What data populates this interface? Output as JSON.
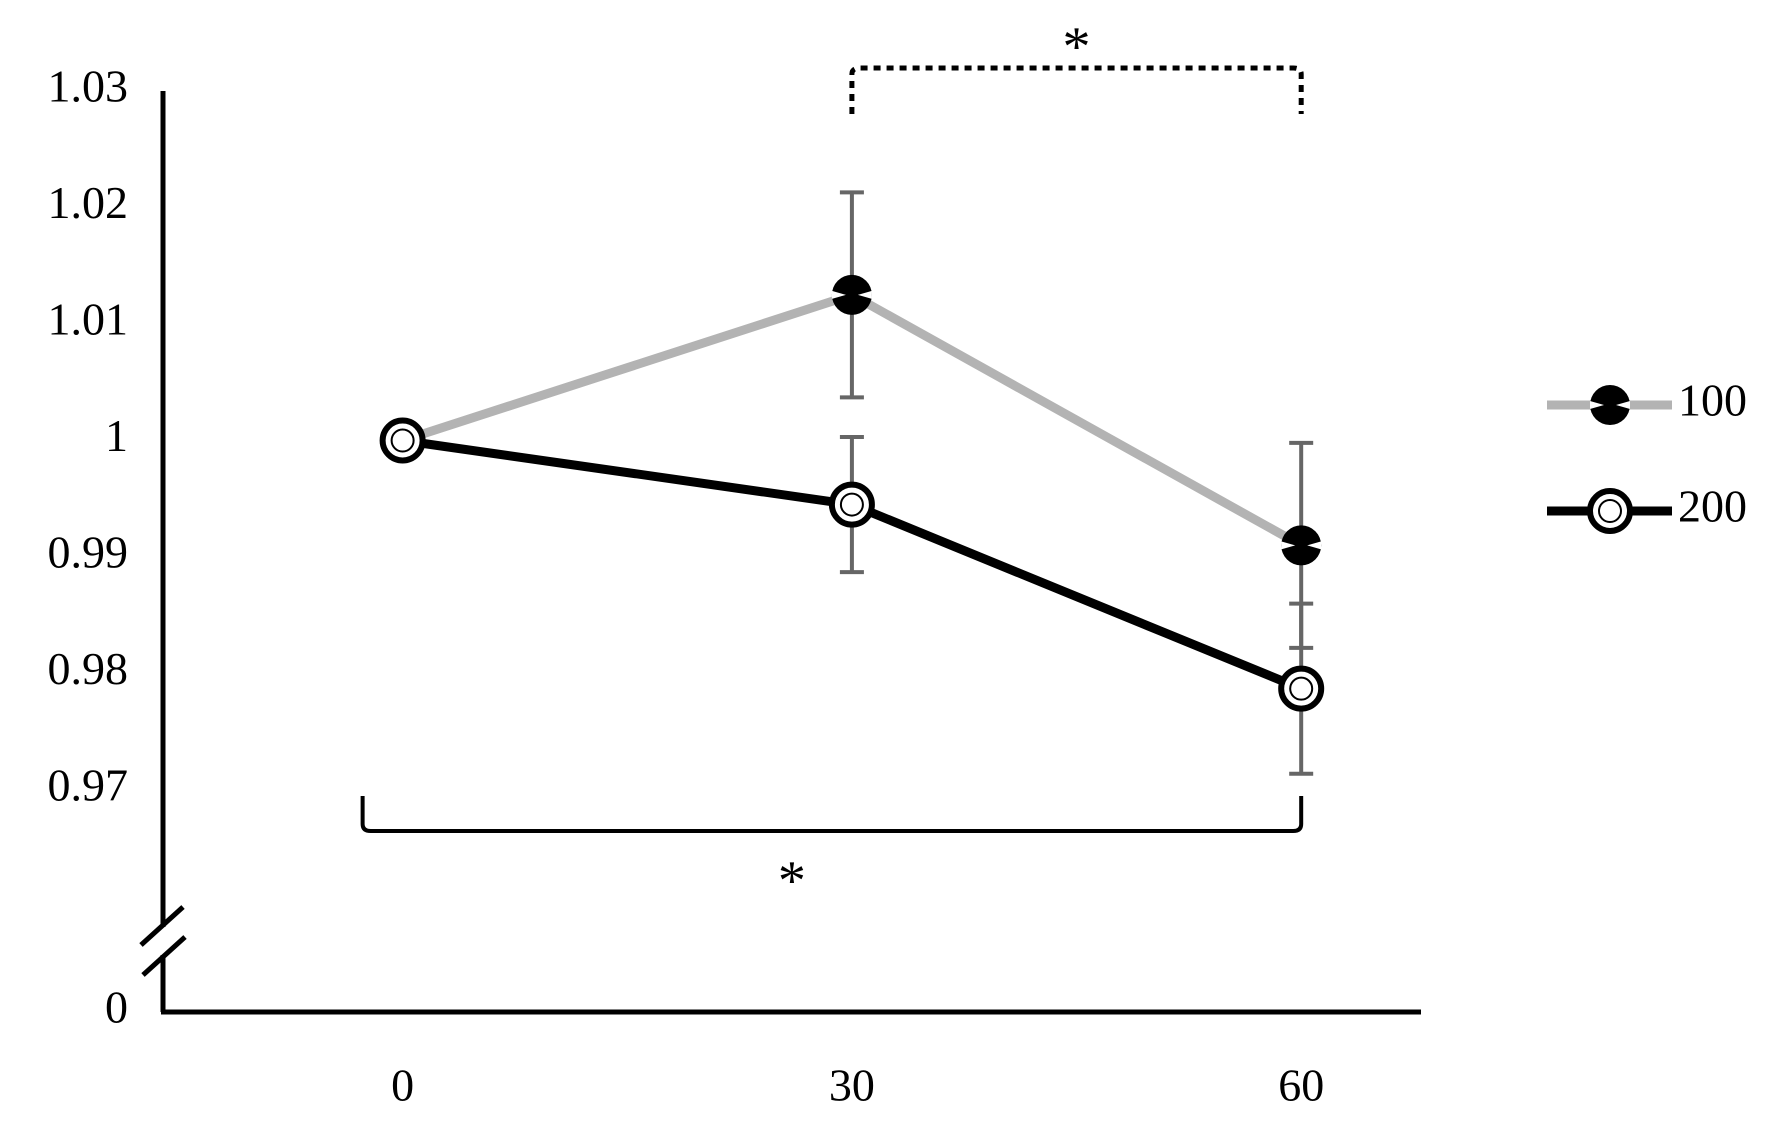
{
  "chart_data": {
    "type": "line",
    "x": [
      0,
      30,
      60
    ],
    "xlim": [
      -16,
      68
    ],
    "xticks": [
      0,
      30,
      60
    ],
    "ylim": [
      0,
      1.03
    ],
    "yticks": [
      0,
      0.97,
      0.98,
      0.99,
      1,
      1.01,
      1.02,
      1.03
    ],
    "y_break": true,
    "series": [
      {
        "name": "100",
        "color": "#b3b3b3",
        "marker_color": "#000000",
        "values": [
          1,
          1.0125,
          0.991
        ],
        "errors": [
          null,
          0.0088,
          0.0088
        ]
      },
      {
        "name": "200",
        "color": "#000000",
        "marker_color": "#ffffff",
        "values": [
          1,
          0.9945,
          0.9787
        ],
        "errors": [
          null,
          0.0058,
          0.0073
        ]
      }
    ],
    "error_color": "#666666",
    "annotations": [
      {
        "text": "*",
        "between": [
          30,
          60
        ],
        "style": "dotted",
        "side": "top"
      },
      {
        "text": "*",
        "between": [
          0,
          60
        ],
        "style": "solid",
        "side": "bottom"
      }
    ],
    "legend": "right"
  }
}
